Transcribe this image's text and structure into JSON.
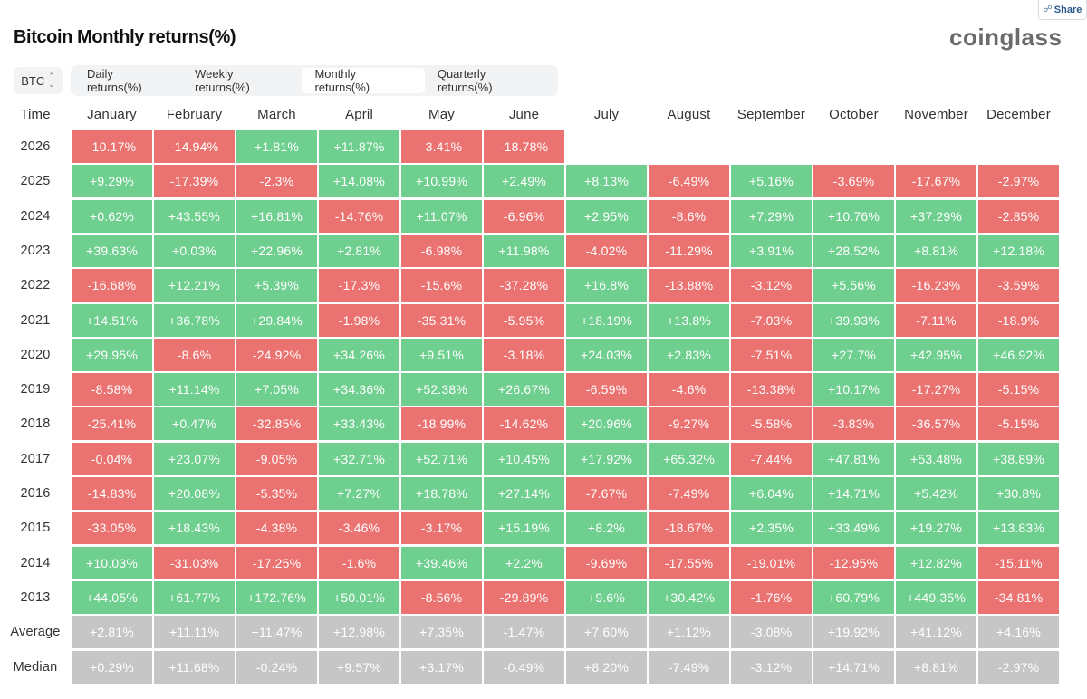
{
  "share_label": "Share",
  "title": "Bitcoin Monthly returns(%)",
  "brand": "coinglass",
  "coin_select": "BTC",
  "tabs": [
    {
      "label": "Daily returns(%)",
      "active": false
    },
    {
      "label": "Weekly returns(%)",
      "active": false
    },
    {
      "label": "Monthly returns(%)",
      "active": true
    },
    {
      "label": "Quarterly returns(%)",
      "active": false
    }
  ],
  "colors": {
    "positive": "#6fcf8f",
    "negative": "#ea7270",
    "stat": "#c6c6c6"
  },
  "table": {
    "time_header": "Time",
    "months": [
      "January",
      "February",
      "March",
      "April",
      "May",
      "June",
      "July",
      "August",
      "September",
      "October",
      "November",
      "December"
    ],
    "rows": [
      {
        "label": "2026",
        "values": [
          "-10.17%",
          "-14.94%",
          "+1.81%",
          "+11.87%",
          "-3.41%",
          "-18.78%",
          "",
          "",
          "",
          "",
          "",
          ""
        ]
      },
      {
        "label": "2025",
        "values": [
          "+9.29%",
          "-17.39%",
          "-2.3%",
          "+14.08%",
          "+10.99%",
          "+2.49%",
          "+8.13%",
          "-6.49%",
          "+5.16%",
          "-3.69%",
          "-17.67%",
          "-2.97%"
        ]
      },
      {
        "label": "2024",
        "values": [
          "+0.62%",
          "+43.55%",
          "+16.81%",
          "-14.76%",
          "+11.07%",
          "-6.96%",
          "+2.95%",
          "-8.6%",
          "+7.29%",
          "+10.76%",
          "+37.29%",
          "-2.85%"
        ]
      },
      {
        "label": "2023",
        "values": [
          "+39.63%",
          "+0.03%",
          "+22.96%",
          "+2.81%",
          "-6.98%",
          "+11.98%",
          "-4.02%",
          "-11.29%",
          "+3.91%",
          "+28.52%",
          "+8.81%",
          "+12.18%"
        ]
      },
      {
        "label": "2022",
        "values": [
          "-16.68%",
          "+12.21%",
          "+5.39%",
          "-17.3%",
          "-15.6%",
          "-37.28%",
          "+16.8%",
          "-13.88%",
          "-3.12%",
          "+5.56%",
          "-16.23%",
          "-3.59%"
        ]
      },
      {
        "label": "2021",
        "values": [
          "+14.51%",
          "+36.78%",
          "+29.84%",
          "-1.98%",
          "-35.31%",
          "-5.95%",
          "+18.19%",
          "+13.8%",
          "-7.03%",
          "+39.93%",
          "-7.11%",
          "-18.9%"
        ]
      },
      {
        "label": "2020",
        "values": [
          "+29.95%",
          "-8.6%",
          "-24.92%",
          "+34.26%",
          "+9.51%",
          "-3.18%",
          "+24.03%",
          "+2.83%",
          "-7.51%",
          "+27.7%",
          "+42.95%",
          "+46.92%"
        ]
      },
      {
        "label": "2019",
        "values": [
          "-8.58%",
          "+11.14%",
          "+7.05%",
          "+34.36%",
          "+52.38%",
          "+26.67%",
          "-6.59%",
          "-4.6%",
          "-13.38%",
          "+10.17%",
          "-17.27%",
          "-5.15%"
        ]
      },
      {
        "label": "2018",
        "values": [
          "-25.41%",
          "+0.47%",
          "-32.85%",
          "+33.43%",
          "-18.99%",
          "-14.62%",
          "+20.96%",
          "-9.27%",
          "-5.58%",
          "-3.83%",
          "-36.57%",
          "-5.15%"
        ]
      },
      {
        "label": "2017",
        "values": [
          "-0.04%",
          "+23.07%",
          "-9.05%",
          "+32.71%",
          "+52.71%",
          "+10.45%",
          "+17.92%",
          "+65.32%",
          "-7.44%",
          "+47.81%",
          "+53.48%",
          "+38.89%"
        ]
      },
      {
        "label": "2016",
        "values": [
          "-14.83%",
          "+20.08%",
          "-5.35%",
          "+7.27%",
          "+18.78%",
          "+27.14%",
          "-7.67%",
          "-7.49%",
          "+6.04%",
          "+14.71%",
          "+5.42%",
          "+30.8%"
        ]
      },
      {
        "label": "2015",
        "values": [
          "-33.05%",
          "+18.43%",
          "-4.38%",
          "-3.46%",
          "-3.17%",
          "+15.19%",
          "+8.2%",
          "-18.67%",
          "+2.35%",
          "+33.49%",
          "+19.27%",
          "+13.83%"
        ]
      },
      {
        "label": "2014",
        "values": [
          "+10.03%",
          "-31.03%",
          "-17.25%",
          "-1.6%",
          "+39.46%",
          "+2.2%",
          "-9.69%",
          "-17.55%",
          "-19.01%",
          "-12.95%",
          "+12.82%",
          "-15.11%"
        ]
      },
      {
        "label": "2013",
        "values": [
          "+44.05%",
          "+61.77%",
          "+172.76%",
          "+50.01%",
          "-8.56%",
          "-29.89%",
          "+9.6%",
          "+30.42%",
          "-1.76%",
          "+60.79%",
          "+449.35%",
          "-34.81%"
        ]
      }
    ],
    "stats": [
      {
        "label": "Average",
        "values": [
          "+2.81%",
          "+11.11%",
          "+11.47%",
          "+12.98%",
          "+7.35%",
          "-1.47%",
          "+7.60%",
          "+1.12%",
          "-3.08%",
          "+19.92%",
          "+41.12%",
          "+4.16%"
        ]
      },
      {
        "label": "Median",
        "values": [
          "+0.29%",
          "+11.68%",
          "-0.24%",
          "+9.57%",
          "+3.17%",
          "-0.49%",
          "+8.20%",
          "-7.49%",
          "-3.12%",
          "+14.71%",
          "+8.81%",
          "-2.97%"
        ]
      }
    ]
  }
}
